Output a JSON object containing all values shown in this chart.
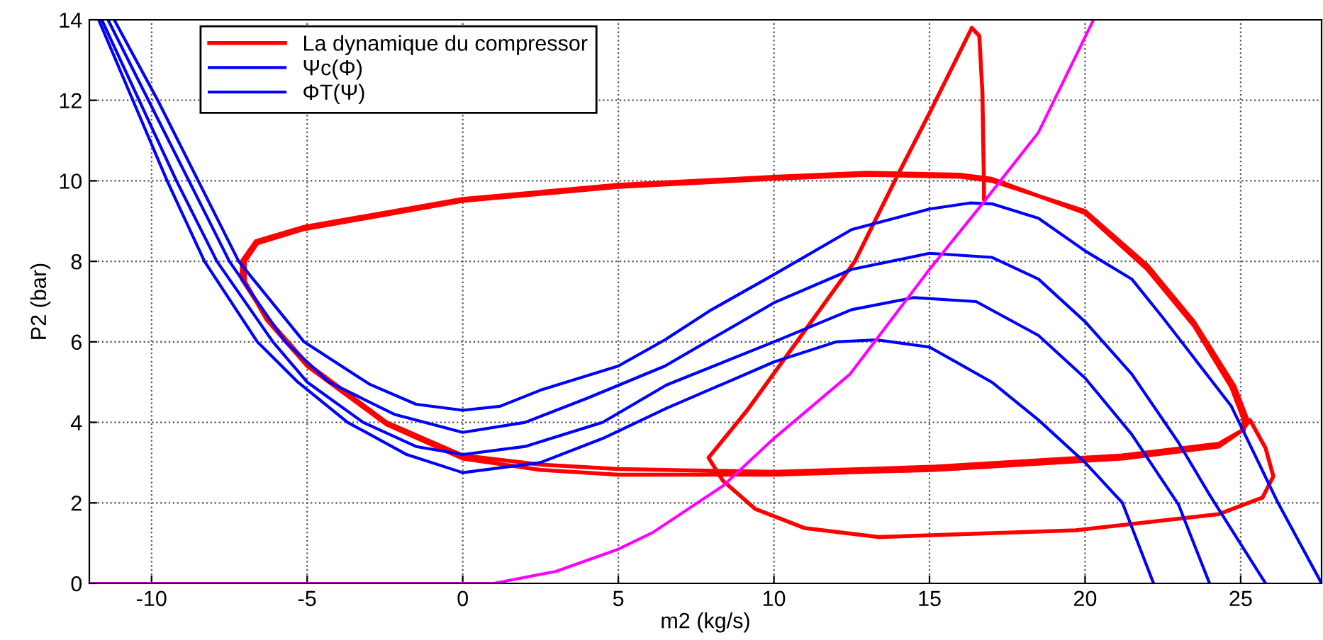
{
  "chart_data": {
    "type": "line",
    "xlabel": "m2 (kg/s)",
    "ylabel": "P2 (bar)",
    "xlim": [
      -12,
      27.6
    ],
    "ylim": [
      0,
      14
    ],
    "xticks": [
      -10,
      -5,
      0,
      5,
      10,
      15,
      20,
      25
    ],
    "yticks": [
      0,
      2,
      4,
      6,
      8,
      10,
      12,
      14
    ],
    "grid": true,
    "legend": "top left",
    "line_style": "solid",
    "marker": "none",
    "series": [
      {
        "name": "La dynamique du compressor",
        "color": "#ff0000",
        "x": [
          16.75,
          16.75,
          16.7,
          16.6,
          16.36,
          15.05,
          13.95,
          12.6,
          10.64,
          9.14,
          7.9,
          8.36,
          9.4,
          11,
          13.36,
          19.7,
          24.3,
          25.7,
          26.05,
          25.8,
          25.3,
          25.05,
          24.3,
          21.2,
          15.2,
          10,
          5,
          2.5,
          0,
          -2.45,
          -5,
          -6.3,
          -7.1,
          -7.1,
          -6.65,
          -5.14,
          0,
          5,
          10,
          13,
          16,
          17,
          20,
          22,
          23.5,
          24.7,
          25.1,
          25.05,
          24.3,
          21.2,
          15.2,
          10,
          5,
          2.5,
          0,
          -2.45,
          -5,
          -6.3,
          -7.0,
          -7.0,
          -6.6,
          -5.1,
          0,
          5,
          10,
          13,
          16,
          17,
          20,
          22,
          23.5,
          24.8,
          25.2,
          25.1
        ],
        "values": [
          9.55,
          9.9,
          12.2,
          13.6,
          13.8,
          11.76,
          10.1,
          8.0,
          5.9,
          4.3,
          3.12,
          2.55,
          1.85,
          1.37,
          1.15,
          1.32,
          1.72,
          2.13,
          2.66,
          3.36,
          4.06,
          3.8,
          3.47,
          3.18,
          2.9,
          2.77,
          2.84,
          2.95,
          3.18,
          4.0,
          5.46,
          6.6,
          7.56,
          8.0,
          8.5,
          8.85,
          9.55,
          9.9,
          10.1,
          10.2,
          10.15,
          10.05,
          9.2,
          7.8,
          6.4,
          4.87,
          4.06,
          3.8,
          3.4,
          3.1,
          2.82,
          2.7,
          2.7,
          2.82,
          3.1,
          3.95,
          5.4,
          6.55,
          7.5,
          8.0,
          8.45,
          8.8,
          9.5,
          9.85,
          10.05,
          10.15,
          10.1,
          10.0,
          9.25,
          7.9,
          6.5,
          4.9,
          4.1,
          3.8
        ]
      },
      {
        "name": "Ψc(Φ)",
        "color": "#0000ff",
        "x": [
          -11.2,
          -9.8,
          -8.5,
          -7.2,
          -5.1,
          -3,
          -1.5,
          0,
          1.2,
          2.5,
          5,
          6.5,
          8,
          10,
          12.5,
          15,
          16.3,
          17,
          18.5,
          20,
          21.5,
          22.5,
          23.5,
          24.7,
          26.2,
          27.6
        ],
        "values": [
          14,
          12,
          10,
          8,
          6,
          4.95,
          4.45,
          4.3,
          4.4,
          4.8,
          5.4,
          6.05,
          6.8,
          7.67,
          8.79,
          9.3,
          9.45,
          9.43,
          9.07,
          8.26,
          7.56,
          6.6,
          5.6,
          4.4,
          2.0,
          0
        ]
      },
      {
        "name": "ΦT(Ψ)",
        "color": "#0000ff",
        "x": [
          -11.4,
          -10.1,
          -8.8,
          -7.5,
          -5.7,
          -4.3,
          -2.2,
          0,
          2,
          4,
          6.5,
          10,
          12.5,
          15,
          17,
          18.5,
          20,
          21.5,
          23,
          24,
          25.8
        ],
        "values": [
          14,
          12,
          10,
          8,
          6,
          5,
          4.2,
          3.75,
          4.0,
          4.6,
          5.4,
          6.97,
          7.8,
          8.2,
          8.1,
          7.56,
          6.5,
          5.2,
          3.5,
          2.2,
          0
        ]
      },
      {
        "color": "#0000ff",
        "x": [
          -11.6,
          -10.4,
          -9.2,
          -7.9,
          -6.1,
          -5.0,
          -3.2,
          -1.5,
          0,
          2,
          4.5,
          6.55,
          10,
          12.5,
          14.5,
          16.5,
          18.5,
          20,
          21.5,
          23,
          24.0
        ],
        "values": [
          14,
          12,
          10,
          8,
          6,
          5,
          4,
          3.4,
          3.2,
          3.4,
          4.0,
          4.93,
          6.0,
          6.8,
          7.1,
          7.0,
          6.16,
          5.1,
          3.7,
          1.96,
          0
        ]
      },
      {
        "color": "#0000ff",
        "x": [
          -11.7,
          -10.6,
          -9.5,
          -8.3,
          -6.6,
          -5.3,
          -3.7,
          -1.8,
          0,
          2.5,
          4.5,
          6.55,
          10,
          12,
          13.3,
          15,
          17,
          18.5,
          20,
          21.2,
          22.2
        ],
        "values": [
          14,
          12,
          10,
          8,
          6,
          5,
          4,
          3.2,
          2.75,
          3.0,
          3.6,
          4.35,
          5.5,
          6.0,
          6.05,
          5.87,
          5.0,
          4.06,
          3.0,
          2.0,
          0
        ]
      },
      {
        "color": "#ff00ff",
        "x": [
          -12,
          1,
          3,
          5,
          6.1,
          8.36,
          10,
          12.45,
          15,
          16.7,
          18.5,
          20.27
        ],
        "values": [
          0,
          0,
          0.3,
          0.85,
          1.26,
          2.42,
          3.6,
          5.2,
          7.8,
          9.43,
          11.2,
          14
        ]
      }
    ]
  }
}
